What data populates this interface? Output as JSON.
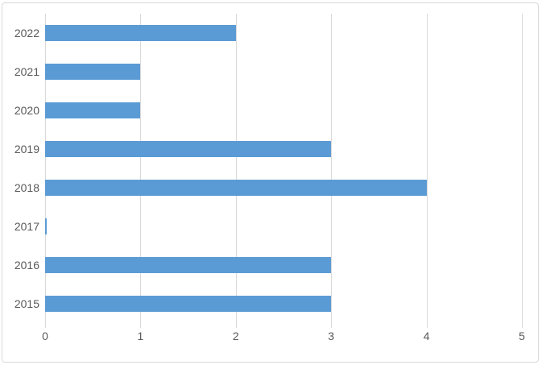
{
  "chart_data": {
    "type": "bar",
    "orientation": "horizontal",
    "title": "",
    "xlabel": "",
    "ylabel": "",
    "categories": [
      "2022",
      "2021",
      "2020",
      "2019",
      "2018",
      "2017",
      "2016",
      "2015"
    ],
    "values": [
      2,
      1,
      1,
      3,
      4,
      0.02,
      3,
      3
    ],
    "xlim": [
      0,
      5
    ],
    "xticks": [
      "0",
      "1",
      "2",
      "3",
      "4",
      "5"
    ],
    "grid": "vertical",
    "legend": "none",
    "colors": {
      "bar": "#5b9bd5",
      "gridline": "#d9d9d9",
      "axis": "#d9d9d9",
      "tick_label": "#595959",
      "frame_border": "#d9d9d9",
      "background": "#ffffff"
    },
    "bar_band_fraction": 0.4
  }
}
